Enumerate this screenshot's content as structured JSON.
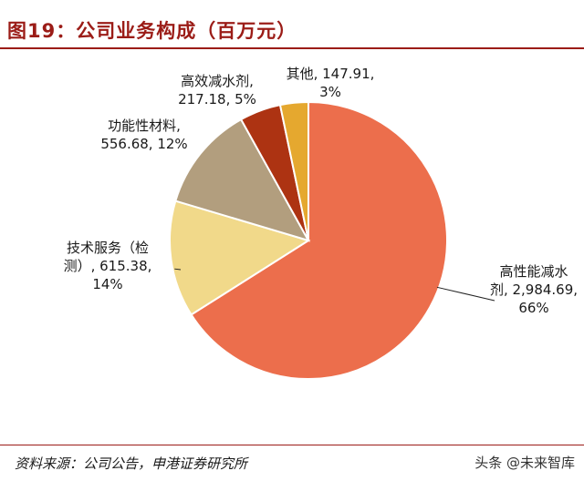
{
  "header": {
    "title": "图19：公司业务构成（百万元）"
  },
  "footer": {
    "source": "资料来源：公司公告，申港证券研究所",
    "watermark": "头条 @未来智库"
  },
  "colors": {
    "accent": "#9b1c17"
  },
  "chart_data": {
    "type": "pie",
    "title": "图19：公司业务构成（百万元）",
    "unit": "百万元",
    "slices": [
      {
        "name": "高性能减水剂",
        "value": 2984.69,
        "percent": 66,
        "color": "#ec6e4c",
        "label_lines": [
          "高性能减水",
          "剂, 2,984.69,",
          "66%"
        ]
      },
      {
        "name": "技术服务（检测）",
        "value": 615.38,
        "percent": 14,
        "color": "#f1d98a",
        "label_lines": [
          "技术服务（检",
          "测）, 615.38,",
          "14%"
        ]
      },
      {
        "name": "功能性材料",
        "value": 556.68,
        "percent": 12,
        "color": "#b29e7e",
        "label_lines": [
          "功能性材料,",
          "556.68, 12%"
        ]
      },
      {
        "name": "高效减水剂",
        "value": 217.18,
        "percent": 5,
        "color": "#ad3312",
        "label_lines": [
          "高效减水剂,",
          "217.18, 5%"
        ]
      },
      {
        "name": "其他",
        "value": 147.91,
        "percent": 3,
        "color": "#e5a82f",
        "label_lines": [
          "其他, 147.91,",
          "3%"
        ]
      }
    ]
  }
}
